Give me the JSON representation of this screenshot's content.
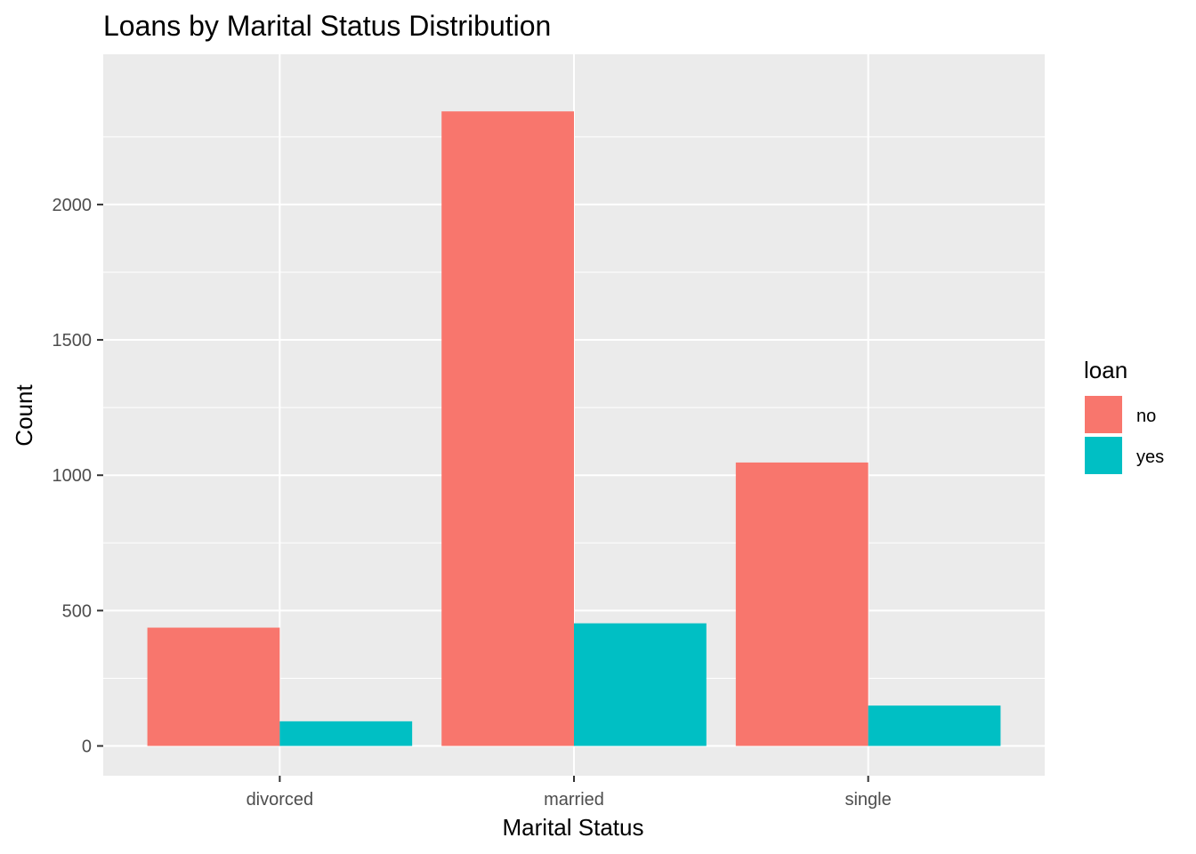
{
  "chart_data": {
    "type": "bar",
    "title": "Loans by Marital Status Distribution",
    "xlabel": "Marital Status",
    "ylabel": "Count",
    "categories": [
      "divorced",
      "married",
      "single"
    ],
    "series": [
      {
        "name": "no",
        "values": [
          437,
          2344,
          1047
        ],
        "color": "#F8766D"
      },
      {
        "name": "yes",
        "values": [
          91,
          453,
          149
        ],
        "color": "#00BFC4"
      }
    ],
    "ylim": [
      -110,
      2555
    ],
    "yticks": [
      0,
      500,
      1000,
      1500,
      2000
    ],
    "ytick_labels": [
      "0",
      "500",
      "1000",
      "1500",
      "2000"
    ],
    "grid": true,
    "panel_background": "#EBEBEB",
    "legend": {
      "title": "loan",
      "position": "right",
      "entries": [
        "no",
        "yes"
      ]
    }
  }
}
